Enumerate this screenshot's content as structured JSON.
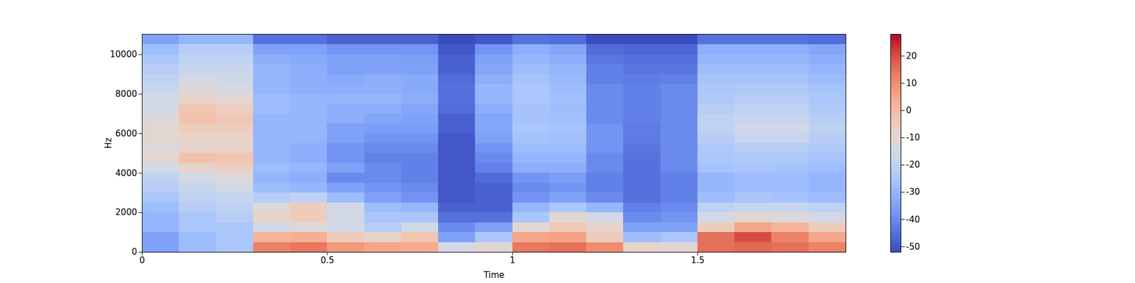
{
  "chart_data": {
    "type": "heatmap",
    "x_label": "Time",
    "y_label": "Hz",
    "xlim": [
      0,
      1.9
    ],
    "ylim": [
      0,
      11025
    ],
    "xticks": [
      0,
      0.5,
      1,
      1.5
    ],
    "yticks": [
      0,
      2000,
      4000,
      6000,
      8000,
      10000
    ],
    "x_edges": [
      0,
      0.1,
      0.2,
      0.3,
      0.4,
      0.5,
      0.6,
      0.7,
      0.8,
      0.9,
      1.0,
      1.1,
      1.2,
      1.3,
      1.4,
      1.5,
      1.6,
      1.7,
      1.8,
      1.9
    ],
    "y_edges": [
      0,
      500,
      1000,
      1500,
      2000,
      2500,
      3000,
      3500,
      4000,
      4500,
      5000,
      5500,
      6000,
      6500,
      7000,
      7500,
      8000,
      8500,
      9000,
      9500,
      10000,
      10500,
      11025
    ],
    "cells": [
      [
        -35,
        -35,
        -30,
        -30,
        -28,
        -25,
        -22,
        -20,
        -15,
        -10,
        -12,
        -10,
        -10,
        -12,
        -15,
        -15,
        -18,
        -20,
        -22,
        -25,
        -28,
        -35
      ],
      [
        -28,
        -28,
        -25,
        -25,
        -22,
        -20,
        -18,
        -15,
        -8,
        -2,
        -8,
        -8,
        -5,
        -2,
        -3,
        -8,
        -12,
        -15,
        -18,
        -20,
        -22,
        -30
      ],
      [
        -25,
        -25,
        -25,
        -22,
        -20,
        -18,
        -15,
        -12,
        -6,
        -3,
        -8,
        -8,
        -6,
        -4,
        -6,
        -10,
        -14,
        -16,
        -18,
        -20,
        -22,
        -30
      ],
      [
        12,
        2,
        -15,
        -8,
        -12,
        -22,
        -28,
        -30,
        -28,
        -30,
        -30,
        -30,
        -30,
        -30,
        -28,
        -28,
        -30,
        -30,
        -30,
        -32,
        -35,
        -45
      ],
      [
        14,
        3,
        -12,
        -5,
        -5,
        -20,
        -30,
        -32,
        -30,
        -32,
        -32,
        -30,
        -30,
        -30,
        -30,
        -30,
        -32,
        -32,
        -32,
        -33,
        -35,
        -45
      ],
      [
        8,
        -5,
        -15,
        -15,
        -15,
        -28,
        -35,
        -40,
        -35,
        -38,
        -38,
        -35,
        -35,
        -32,
        -32,
        -30,
        -32,
        -33,
        -35,
        -35,
        -38,
        -48
      ],
      [
        5,
        -8,
        -22,
        -25,
        -28,
        -35,
        -38,
        -40,
        -40,
        -42,
        -40,
        -38,
        -36,
        -34,
        -32,
        -30,
        -32,
        -32,
        -35,
        -35,
        -38,
        -48
      ],
      [
        4,
        -3,
        -15,
        -25,
        -30,
        -38,
        -40,
        -42,
        -42,
        -42,
        -40,
        -38,
        -36,
        -35,
        -34,
        -32,
        -33,
        -33,
        -35,
        -36,
        -38,
        -48
      ],
      [
        -15,
        -35,
        -40,
        -45,
        -48,
        -50,
        -50,
        -50,
        -50,
        -50,
        -50,
        -50,
        -48,
        -48,
        -46,
        -45,
        -45,
        -46,
        -48,
        -48,
        -50,
        -52
      ],
      [
        -10,
        -25,
        -35,
        -45,
        -48,
        -48,
        -48,
        -46,
        -42,
        -40,
        -38,
        -35,
        -34,
        -34,
        -32,
        -30,
        -30,
        -32,
        -34,
        -35,
        -38,
        -50
      ],
      [
        14,
        5,
        -10,
        -25,
        -30,
        -38,
        -40,
        -38,
        -32,
        -30,
        -28,
        -26,
        -25,
        -26,
        -26,
        -25,
        -25,
        -26,
        -28,
        -30,
        -32,
        -45
      ],
      [
        15,
        6,
        -4,
        -10,
        -25,
        -35,
        -38,
        -36,
        -32,
        -30,
        -28,
        -27,
        -26,
        -27,
        -28,
        -27,
        -28,
        -29,
        -30,
        -32,
        -34,
        -46
      ],
      [
        10,
        -5,
        -8,
        -15,
        -30,
        -40,
        -42,
        -42,
        -40,
        -40,
        -38,
        -38,
        -38,
        -40,
        -40,
        -40,
        -40,
        -42,
        -42,
        -44,
        -46,
        -52
      ],
      [
        -8,
        -28,
        -35,
        -40,
        -42,
        -45,
        -45,
        -45,
        -45,
        -45,
        -44,
        -43,
        -43,
        -42,
        -42,
        -42,
        -42,
        -43,
        -44,
        -45,
        -47,
        -52
      ],
      [
        -10,
        -25,
        -35,
        -38,
        -40,
        -42,
        -42,
        -42,
        -40,
        -40,
        -40,
        -40,
        -40,
        -40,
        -40,
        -40,
        -40,
        -42,
        -44,
        -45,
        -47,
        -52
      ],
      [
        15,
        15,
        -5,
        -15,
        -20,
        -28,
        -30,
        -30,
        -26,
        -25,
        -24,
        -22,
        -20,
        -20,
        -22,
        -24,
        -25,
        -26,
        -28,
        -30,
        -32,
        -45
      ],
      [
        16,
        20,
        5,
        -10,
        -18,
        -25,
        -28,
        -28,
        -25,
        -24,
        -22,
        -18,
        -16,
        -18,
        -20,
        -22,
        -24,
        -26,
        -28,
        -30,
        -32,
        -45
      ],
      [
        15,
        12,
        2,
        -12,
        -18,
        -26,
        -28,
        -28,
        -26,
        -24,
        -22,
        -18,
        -16,
        -18,
        -20,
        -22,
        -24,
        -26,
        -28,
        -30,
        -32,
        -45
      ],
      [
        12,
        5,
        -5,
        -15,
        -20,
        -28,
        -30,
        -30,
        -28,
        -26,
        -24,
        -22,
        -20,
        -22,
        -24,
        -25,
        -26,
        -28,
        -30,
        -32,
        -34,
        -46
      ]
    ],
    "colorbar_range": [
      -52,
      28
    ],
    "colorbar_ticks": [
      -50,
      -40,
      -30,
      -20,
      -10,
      0,
      10,
      20
    ]
  }
}
